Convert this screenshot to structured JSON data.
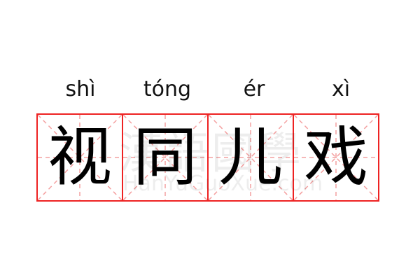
{
  "pinyin": [
    "shì",
    "tóng",
    "ér",
    "xì"
  ],
  "characters": [
    "视",
    "同",
    "儿",
    "戏"
  ],
  "watermark": {
    "logo": "漢語國學",
    "site": "HanYuGuoXue.com"
  },
  "colors": {
    "grid_border": "#ee2222",
    "guide_lines": "#f4a0a0",
    "text": "#000000"
  }
}
